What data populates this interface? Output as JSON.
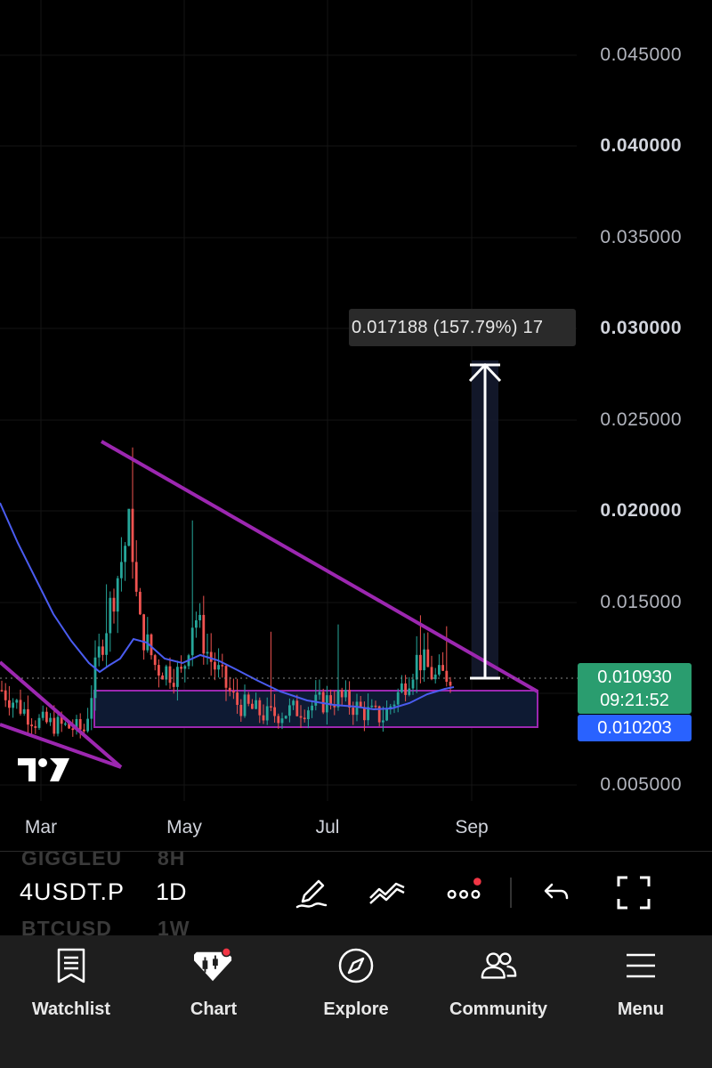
{
  "chart": {
    "price_axis": [
      "0.045000",
      "0.040000",
      "0.035000",
      "0.030000",
      "0.025000",
      "0.020000",
      "0.015000",
      "0.005000"
    ],
    "time_axis": [
      "Mar",
      "May",
      "Jul",
      "Sep"
    ],
    "measure_label": "0.017188 (157.79%) 17",
    "last_price": "0.010930",
    "countdown": "09:21:52",
    "cursor_price": "0.010203"
  },
  "symbol_bar": {
    "ghost_top_symbol": "GIGGLEU",
    "ghost_top_interval": "8H",
    "symbol": "4USDT.P",
    "interval": "1D",
    "ghost_bottom_symbol": "BTCUSD",
    "ghost_bottom_interval": "1W"
  },
  "tools": [
    "draw-pen-icon",
    "indicators-icon",
    "more-icon",
    "undo-icon",
    "fullscreen-icon"
  ],
  "nav": {
    "items": [
      {
        "label": "Watchlist",
        "icon": "watchlist-icon"
      },
      {
        "label": "Chart",
        "icon": "chart-icon"
      },
      {
        "label": "Explore",
        "icon": "compass-icon"
      },
      {
        "label": "Community",
        "icon": "community-icon"
      },
      {
        "label": "Menu",
        "icon": "menu-icon"
      }
    ]
  },
  "colors": {
    "background": "#000000",
    "up_candle": "#26a69a",
    "down_candle": "#ef5350",
    "trendline": "#9c27b0",
    "ma_line": "#3f51f5",
    "last_price_bg": "#2a9d6f",
    "cursor_price_bg": "#2962ff",
    "notification_dot": "#f23645"
  }
}
